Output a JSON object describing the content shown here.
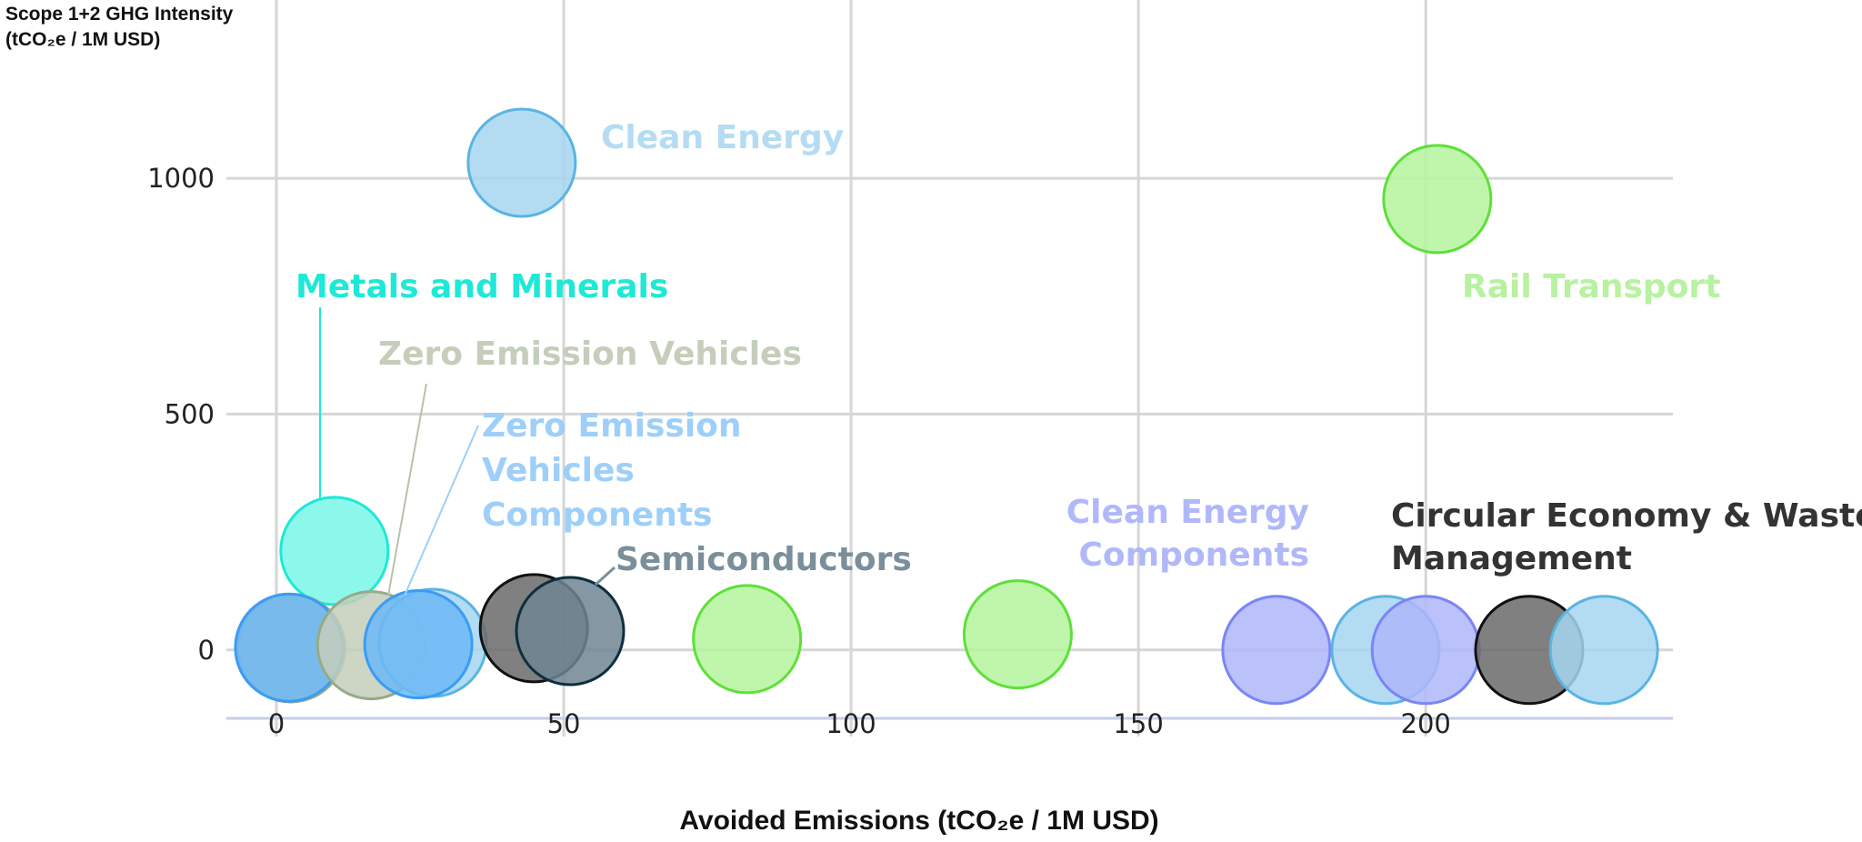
{
  "chart_data": {
    "type": "scatter",
    "subtype": "bubble",
    "ylabel_line1": "Scope 1+2 GHG Intensity",
    "ylabel_line2": "(tCO₂e / 1M USD)",
    "xlabel": "Avoided Emissions (tCO₂e / 1M USD)",
    "xlim": [
      -8.7,
      243
    ],
    "ylim": [
      -145,
      1378
    ],
    "xticks": [
      "0",
      "50",
      "100",
      "150",
      "200"
    ],
    "yticks": [
      "0",
      "500",
      "1000"
    ],
    "grid": true,
    "legend": "none",
    "colors": {
      "clean_energy": {
        "fill": "#a6d6f1",
        "stroke": "#5ab4e2"
      },
      "rail": {
        "fill": "#b4f59c",
        "stroke": "#5ee03a"
      },
      "metals": {
        "fill": "#78f7e8",
        "stroke": "#1de9d6"
      },
      "zev": {
        "fill": "#c4cebb",
        "stroke": "#98aa86"
      },
      "zev_comp": {
        "fill": "#6cb8f6",
        "stroke": "#3a9cf5"
      },
      "semis": {
        "fill": "#6e8592",
        "stroke": "#0e2e3e"
      },
      "circular": {
        "fill": "#6a6a6a",
        "stroke": "#111111"
      },
      "ce_comp": {
        "fill": "#aeb6fa",
        "stroke": "#7a85f5"
      }
    },
    "points": [
      {
        "x": 42.7,
        "y": 1033,
        "group": "clean_energy"
      },
      {
        "x": 202,
        "y": 956,
        "group": "rail"
      },
      {
        "x": 10.1,
        "y": 210,
        "group": "metals"
      },
      {
        "x": 2.5,
        "y": 4,
        "group": "circular"
      },
      {
        "x": 2.6,
        "y": 4,
        "group": "zev"
      },
      {
        "x": 2.2,
        "y": 5,
        "group": "zev_comp"
      },
      {
        "x": 16.5,
        "y": 10,
        "group": "zev"
      },
      {
        "x": 27.2,
        "y": 15,
        "group": "clean_energy"
      },
      {
        "x": 24.7,
        "y": 12,
        "group": "zev_comp"
      },
      {
        "x": 44.8,
        "y": 46,
        "group": "circular"
      },
      {
        "x": 51.1,
        "y": 40,
        "group": "semis"
      },
      {
        "x": 81.9,
        "y": 23,
        "group": "rail"
      },
      {
        "x": 129,
        "y": 33,
        "group": "rail"
      },
      {
        "x": 174,
        "y": 0,
        "group": "ce_comp"
      },
      {
        "x": 193,
        "y": 0,
        "group": "clean_energy"
      },
      {
        "x": 200,
        "y": 0,
        "group": "ce_comp"
      },
      {
        "x": 218,
        "y": 0,
        "group": "circular"
      },
      {
        "x": 231,
        "y": 0,
        "group": "clean_energy"
      }
    ],
    "annotations": {
      "clean_energy": [
        "Clean Energy"
      ],
      "rail": [
        "Rail Transport"
      ],
      "metals": [
        "Metals and Minerals"
      ],
      "zev": [
        "Zero Emission Vehicles"
      ],
      "zev_comp": [
        "Zero Emission",
        "Vehicles",
        "Components"
      ],
      "semis": [
        "Semiconductors"
      ],
      "ce_comp": [
        "Clean Energy",
        "Components"
      ],
      "circular": [
        "Circular Economy & Waste",
        "Management"
      ]
    }
  }
}
